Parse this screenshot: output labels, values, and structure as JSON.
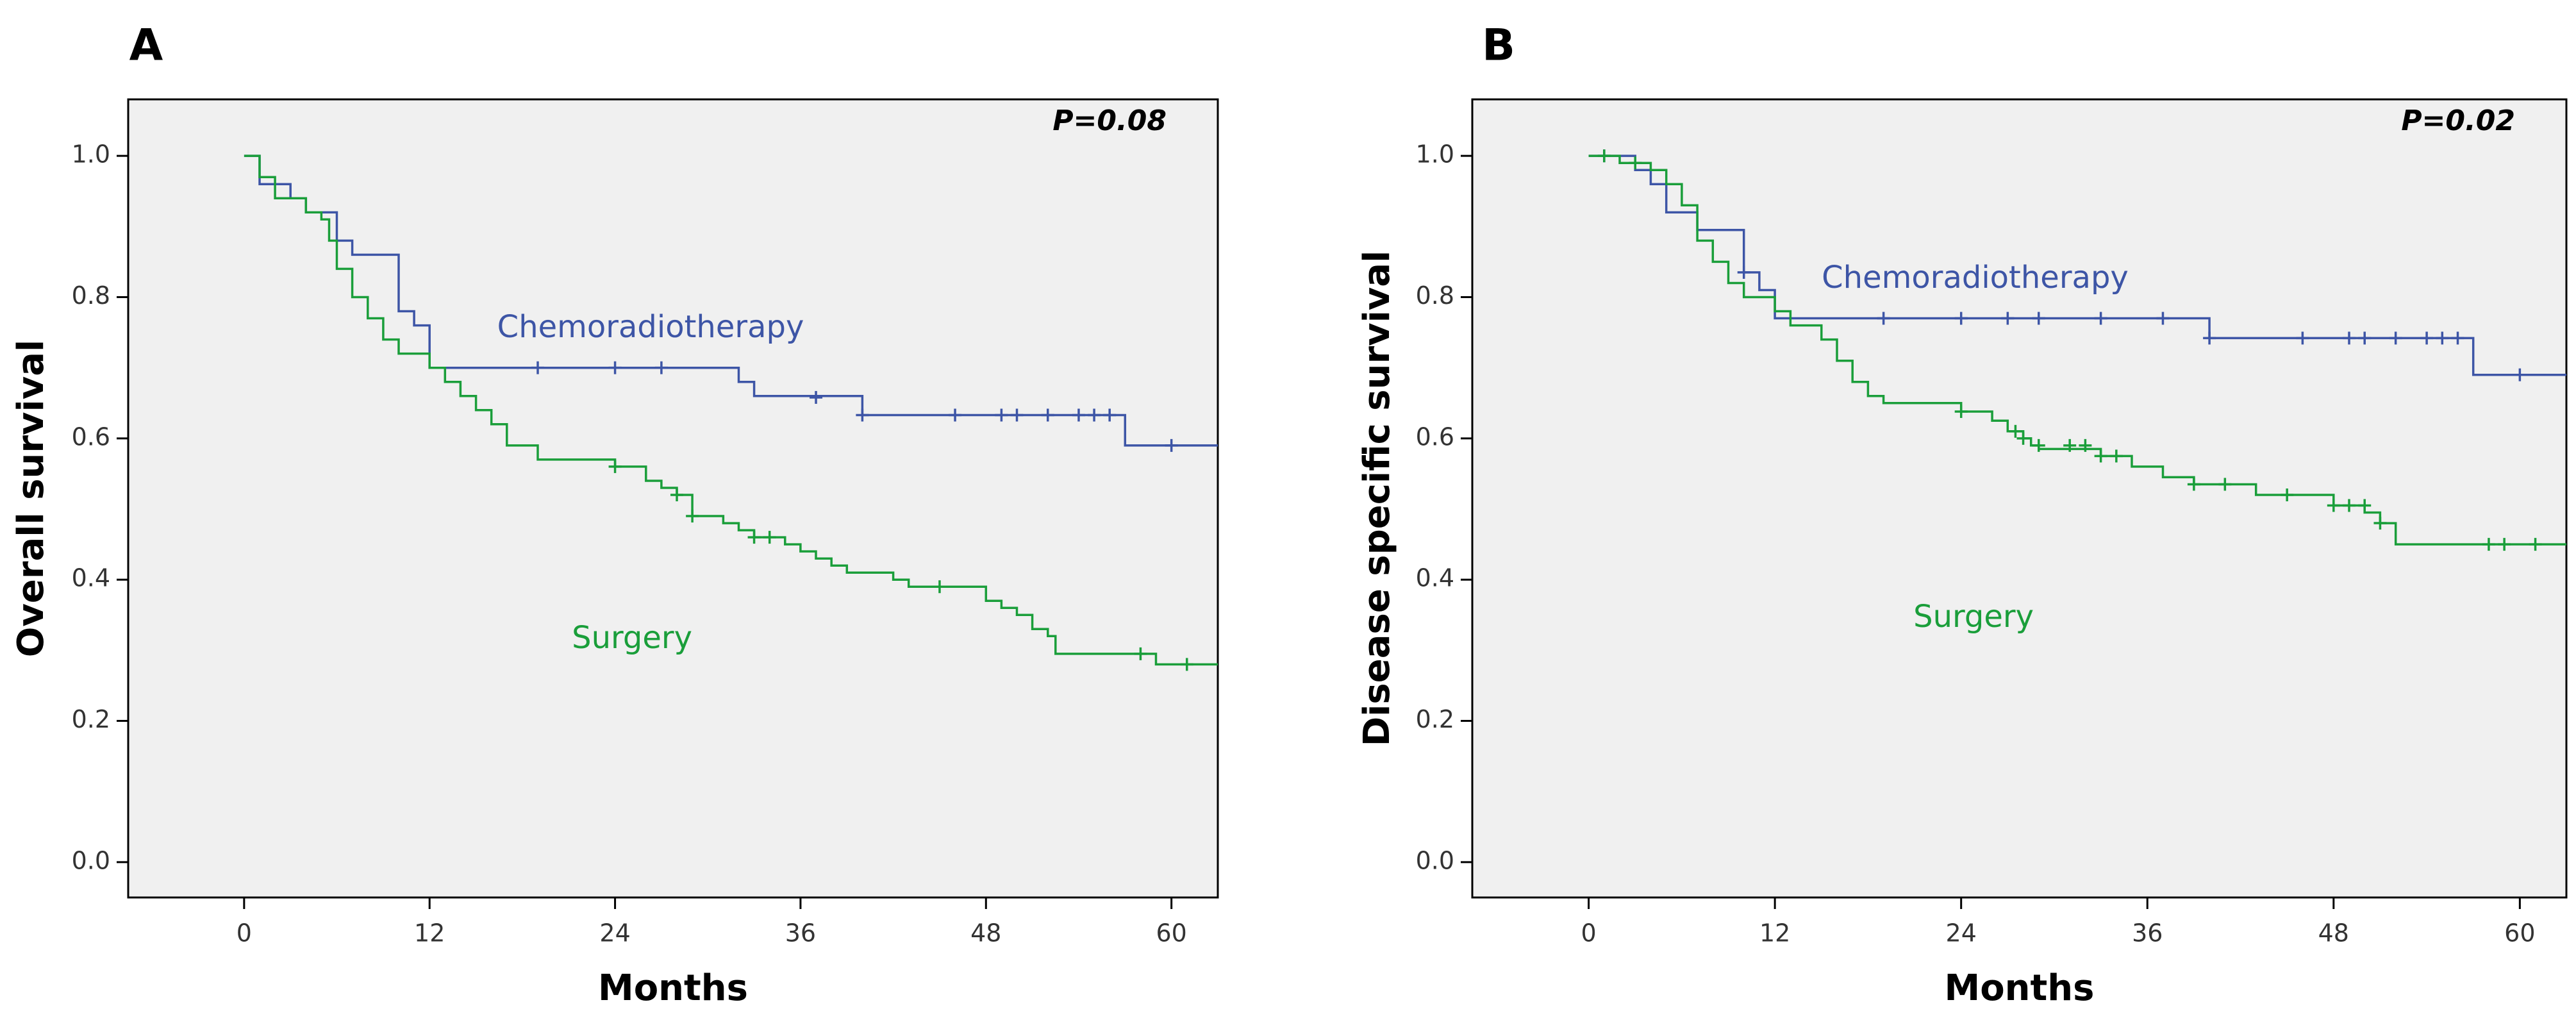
{
  "chart_data": [
    {
      "type": "line",
      "subtype": "kaplan-meier",
      "panel": "A",
      "title": "",
      "xlabel": "Months",
      "ylabel": "Overall survival",
      "xlim": [
        -7.5,
        63
      ],
      "ylim": [
        -0.05,
        1.08
      ],
      "xticks": [
        0,
        12,
        24,
        36,
        48,
        60
      ],
      "yticks": [
        0.0,
        0.2,
        0.4,
        0.6,
        0.8,
        1.0
      ],
      "xtick_labels": [
        "0",
        "12",
        "24",
        "36",
        "48",
        "60"
      ],
      "ytick_labels": [
        "0.0",
        "0.2",
        "0.4",
        "0.6",
        "0.8",
        "1.0"
      ],
      "annotation": "P=0.08",
      "grid": false,
      "series": [
        {
          "name": "Chemoradiotherapy",
          "color": "#3d55a6",
          "steps": [
            [
              0,
              1.0
            ],
            [
              1,
              0.96
            ],
            [
              3,
              0.94
            ],
            [
              4,
              0.92
            ],
            [
              6,
              0.88
            ],
            [
              7,
              0.86
            ],
            [
              10,
              0.78
            ],
            [
              11,
              0.76
            ],
            [
              12,
              0.7
            ],
            [
              32,
              0.68
            ],
            [
              33,
              0.66
            ],
            [
              40,
              0.633
            ],
            [
              57,
              0.59
            ],
            [
              63,
              0.59
            ]
          ],
          "censored": [
            [
              19,
              0.7
            ],
            [
              24,
              0.7
            ],
            [
              27,
              0.7
            ],
            [
              37,
              0.658
            ],
            [
              40,
              0.633
            ],
            [
              46,
              0.633
            ],
            [
              49,
              0.633
            ],
            [
              50,
              0.633
            ],
            [
              52,
              0.633
            ],
            [
              54,
              0.633
            ],
            [
              55,
              0.633
            ],
            [
              56,
              0.633
            ],
            [
              60,
              0.59
            ]
          ]
        },
        {
          "name": "Surgery",
          "color": "#1a9e3a",
          "steps": [
            [
              0,
              1.0
            ],
            [
              1,
              0.97
            ],
            [
              2,
              0.94
            ],
            [
              4,
              0.92
            ],
            [
              5,
              0.91
            ],
            [
              5.5,
              0.88
            ],
            [
              6,
              0.84
            ],
            [
              7,
              0.8
            ],
            [
              8,
              0.77
            ],
            [
              9,
              0.74
            ],
            [
              10,
              0.72
            ],
            [
              12,
              0.7
            ],
            [
              13,
              0.68
            ],
            [
              14,
              0.66
            ],
            [
              15,
              0.64
            ],
            [
              16,
              0.62
            ],
            [
              17,
              0.59
            ],
            [
              19,
              0.57
            ],
            [
              24,
              0.56
            ],
            [
              26,
              0.54
            ],
            [
              27,
              0.53
            ],
            [
              28,
              0.52
            ],
            [
              29,
              0.49
            ],
            [
              31,
              0.48
            ],
            [
              32,
              0.47
            ],
            [
              33,
              0.46
            ],
            [
              35,
              0.45
            ],
            [
              36,
              0.44
            ],
            [
              37,
              0.43
            ],
            [
              38,
              0.42
            ],
            [
              39,
              0.41
            ],
            [
              42,
              0.4
            ],
            [
              43,
              0.39
            ],
            [
              48,
              0.37
            ],
            [
              49,
              0.36
            ],
            [
              50,
              0.35
            ],
            [
              51,
              0.33
            ],
            [
              52,
              0.32
            ],
            [
              52.5,
              0.295
            ],
            [
              58,
              0.295
            ],
            [
              59,
              0.28
            ],
            [
              63,
              0.28
            ]
          ],
          "censored": [
            [
              24,
              0.56
            ],
            [
              28,
              0.52
            ],
            [
              29,
              0.49
            ],
            [
              33,
              0.46
            ],
            [
              34,
              0.46
            ],
            [
              45,
              0.39
            ],
            [
              58,
              0.295
            ],
            [
              61,
              0.28
            ]
          ]
        }
      ],
      "series_labels": [
        {
          "text": "Chemoradiotherapy",
          "color": "#3d55a6",
          "at": [
            26.3,
            0.755
          ]
        },
        {
          "text": "Surgery",
          "color": "#1a9e3a",
          "at": [
            25.1,
            0.315
          ]
        }
      ]
    },
    {
      "type": "line",
      "subtype": "kaplan-meier",
      "panel": "B",
      "title": "",
      "xlabel": "Months",
      "ylabel": "Disease specific survival",
      "xlim": [
        -7.5,
        63
      ],
      "ylim": [
        -0.05,
        1.08
      ],
      "xticks": [
        0,
        12,
        24,
        36,
        48,
        60
      ],
      "yticks": [
        0.0,
        0.2,
        0.4,
        0.6,
        0.8,
        1.0
      ],
      "xtick_labels": [
        "0",
        "12",
        "24",
        "36",
        "48",
        "60"
      ],
      "ytick_labels": [
        "0.0",
        "0.2",
        "0.4",
        "0.6",
        "0.8",
        "1.0"
      ],
      "annotation": "P=0.02",
      "grid": false,
      "series": [
        {
          "name": "Chemoradiotherapy",
          "color": "#3d55a6",
          "steps": [
            [
              0,
              1.0
            ],
            [
              3,
              0.98
            ],
            [
              4,
              0.96
            ],
            [
              5,
              0.92
            ],
            [
              7,
              0.895
            ],
            [
              10,
              0.835
            ],
            [
              11,
              0.81
            ],
            [
              12,
              0.77
            ],
            [
              40,
              0.742
            ],
            [
              57,
              0.69
            ],
            [
              63,
              0.69
            ]
          ],
          "censored": [
            [
              1,
              1.0
            ],
            [
              10,
              0.835
            ],
            [
              19,
              0.77
            ],
            [
              24,
              0.77
            ],
            [
              27,
              0.77
            ],
            [
              29,
              0.77
            ],
            [
              33,
              0.77
            ],
            [
              37,
              0.77
            ],
            [
              40,
              0.742
            ],
            [
              46,
              0.742
            ],
            [
              49,
              0.742
            ],
            [
              50,
              0.742
            ],
            [
              52,
              0.742
            ],
            [
              54,
              0.742
            ],
            [
              55,
              0.742
            ],
            [
              56,
              0.742
            ],
            [
              60,
              0.69
            ]
          ]
        },
        {
          "name": "Surgery",
          "color": "#1a9e3a",
          "steps": [
            [
              0,
              1.0
            ],
            [
              2,
              0.99
            ],
            [
              4,
              0.98
            ],
            [
              5,
              0.96
            ],
            [
              6,
              0.93
            ],
            [
              7,
              0.88
            ],
            [
              8,
              0.85
            ],
            [
              9,
              0.82
            ],
            [
              10,
              0.8
            ],
            [
              12,
              0.78
            ],
            [
              13,
              0.76
            ],
            [
              15,
              0.74
            ],
            [
              16,
              0.71
            ],
            [
              17,
              0.68
            ],
            [
              18,
              0.66
            ],
            [
              19,
              0.65
            ],
            [
              24,
              0.638
            ],
            [
              26,
              0.625
            ],
            [
              27,
              0.61
            ],
            [
              28,
              0.6
            ],
            [
              28.5,
              0.59
            ],
            [
              29,
              0.585
            ],
            [
              33,
              0.575
            ],
            [
              35,
              0.56
            ],
            [
              37,
              0.545
            ],
            [
              39,
              0.535
            ],
            [
              43,
              0.52
            ],
            [
              48,
              0.505
            ],
            [
              50,
              0.495
            ],
            [
              51,
              0.48
            ],
            [
              52,
              0.45
            ],
            [
              63,
              0.45
            ]
          ],
          "censored": [
            [
              1,
              1.0
            ],
            [
              3,
              0.99
            ],
            [
              24,
              0.638
            ],
            [
              27.5,
              0.61
            ],
            [
              28,
              0.6
            ],
            [
              29,
              0.59
            ],
            [
              31,
              0.59
            ],
            [
              32,
              0.59
            ],
            [
              33,
              0.575
            ],
            [
              34,
              0.575
            ],
            [
              39,
              0.535
            ],
            [
              41,
              0.535
            ],
            [
              45,
              0.52
            ],
            [
              48,
              0.505
            ],
            [
              49,
              0.505
            ],
            [
              50,
              0.505
            ],
            [
              51,
              0.48
            ],
            [
              58,
              0.45
            ],
            [
              59,
              0.45
            ],
            [
              61,
              0.45
            ]
          ]
        }
      ],
      "series_labels": [
        {
          "text": "Chemoradiotherapy",
          "color": "#3d55a6",
          "at": [
            24.9,
            0.825
          ]
        },
        {
          "text": "Surgery",
          "color": "#1a9e3a",
          "at": [
            24.8,
            0.345
          ]
        }
      ]
    }
  ]
}
